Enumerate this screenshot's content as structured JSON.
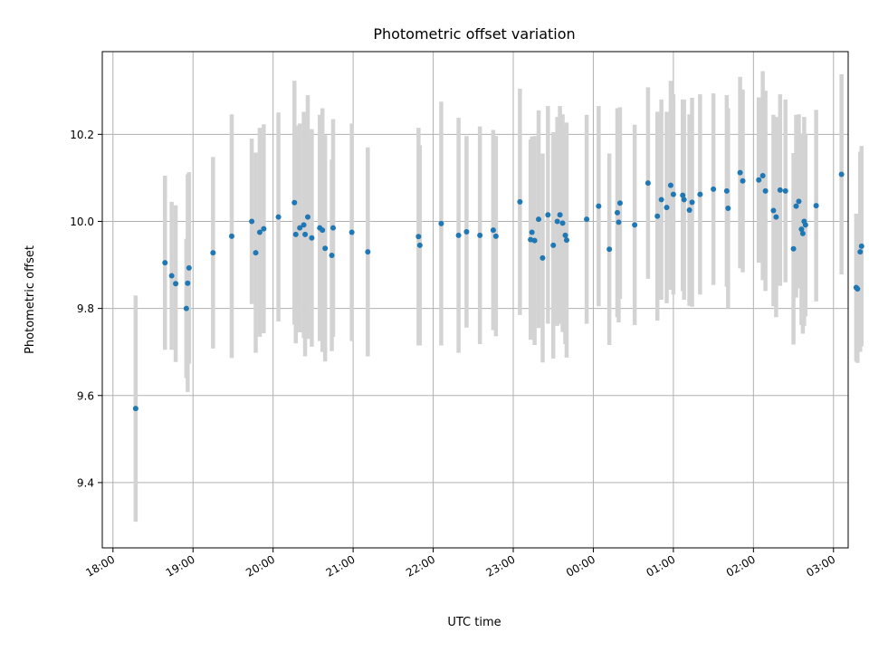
{
  "chart_data": {
    "type": "scatter",
    "title": "Photometric offset variation",
    "xlabel": "UTC time",
    "ylabel": "Photometric offset",
    "x_ticks": [
      "18:00",
      "19:00",
      "20:00",
      "21:00",
      "22:00",
      "23:00",
      "00:00",
      "01:00",
      "02:00",
      "03:00"
    ],
    "y_ticks": [
      "9.4",
      "9.6",
      "9.8",
      "10.0",
      "10.2"
    ],
    "xlim": [
      "17:52",
      "03:11"
    ],
    "ylim": [
      9.25,
      10.39
    ],
    "grid": true,
    "colors": {
      "marker": "#1f77b4",
      "errorbar": "#d3d3d3",
      "grid": "#b0b0b0"
    },
    "series": [
      {
        "x": [
          "18:17",
          "18:39",
          "18:44",
          "18:47",
          "18:55",
          "18:56",
          "18:57",
          "19:15",
          "19:29",
          "19:44",
          "19:47",
          "19:50",
          "19:53",
          "20:04",
          "20:16",
          "20:17",
          "20:20",
          "20:23",
          "20:24",
          "20:26",
          "20:29",
          "20:35",
          "20:37",
          "20:39",
          "20:44",
          "20:45",
          "20:59",
          "21:11",
          "21:49",
          "21:50",
          "22:06",
          "22:19",
          "22:25",
          "22:35",
          "22:45",
          "22:47",
          "23:05",
          "23:13",
          "23:14",
          "23:16",
          "23:19",
          "23:22",
          "23:26",
          "23:30",
          "23:33",
          "23:35",
          "23:37",
          "23:39",
          "23:40",
          "23:55",
          "24:04",
          "24:12",
          "24:18",
          "24:19",
          "24:20",
          "24:31",
          "24:41",
          "24:48",
          "24:51",
          "24:55",
          "24:58",
          "25:00",
          "25:07",
          "25:08",
          "25:12",
          "25:14",
          "25:20",
          "25:30",
          "25:40",
          "25:41",
          "25:50",
          "25:52",
          "26:04",
          "26:07",
          "26:09",
          "26:15",
          "26:17",
          "26:20",
          "26:24",
          "26:30",
          "26:32",
          "26:34",
          "26:36",
          "26:37",
          "26:38",
          "26:39",
          "26:47",
          "27:06",
          "27:17",
          "27:18",
          "27:20",
          "27:21"
        ],
        "y": [
          9.57,
          9.905,
          9.875,
          9.857,
          9.8,
          9.858,
          9.893,
          9.928,
          9.966,
          10.0,
          9.928,
          9.975,
          9.983,
          10.01,
          10.043,
          9.97,
          9.985,
          9.992,
          9.97,
          10.01,
          9.962,
          9.985,
          9.98,
          9.938,
          9.922,
          9.985,
          9.975,
          9.93,
          9.965,
          9.945,
          9.995,
          9.968,
          9.976,
          9.968,
          9.98,
          9.966,
          10.045,
          9.958,
          9.975,
          9.956,
          10.005,
          9.916,
          10.015,
          9.945,
          10.0,
          10.015,
          9.996,
          9.968,
          9.957,
          10.005,
          10.035,
          9.936,
          10.02,
          9.998,
          10.042,
          9.992,
          10.088,
          10.012,
          10.05,
          10.032,
          10.083,
          10.062,
          10.06,
          10.05,
          10.026,
          10.044,
          10.062,
          10.074,
          10.07,
          10.03,
          10.112,
          10.093,
          10.095,
          10.105,
          10.07,
          10.025,
          10.01,
          10.072,
          10.07,
          9.937,
          10.035,
          10.046,
          9.982,
          9.972,
          10.0,
          9.992,
          10.036,
          10.108,
          9.848,
          9.845,
          9.93,
          9.943
        ],
        "err": [
          0.26,
          0.2,
          0.17,
          0.18,
          0.16,
          0.25,
          0.22,
          0.22,
          0.28,
          0.19,
          0.23,
          0.24,
          0.24,
          0.24,
          0.28,
          0.25,
          0.24,
          0.26,
          0.28,
          0.28,
          0.25,
          0.26,
          0.28,
          0.26,
          0.22,
          0.25,
          0.25,
          0.24,
          0.25,
          0.23,
          0.28,
          0.27,
          0.22,
          0.25,
          0.23,
          0.23,
          0.26,
          0.23,
          0.22,
          0.24,
          0.25,
          0.24,
          0.25,
          0.26,
          0.24,
          0.25,
          0.25,
          0.25,
          0.27,
          0.24,
          0.23,
          0.22,
          0.24,
          0.23,
          0.22,
          0.23,
          0.22,
          0.24,
          0.23,
          0.22,
          0.24,
          0.23,
          0.22,
          0.23,
          0.22,
          0.24,
          0.23,
          0.22,
          0.22,
          0.23,
          0.22,
          0.21,
          0.19,
          0.24,
          0.23,
          0.22,
          0.23,
          0.22,
          0.21,
          0.22,
          0.21,
          0.2,
          0.22,
          0.23,
          0.24,
          0.21,
          0.22,
          0.23,
          0.17,
          0.17,
          0.23,
          0.23
        ]
      }
    ]
  }
}
